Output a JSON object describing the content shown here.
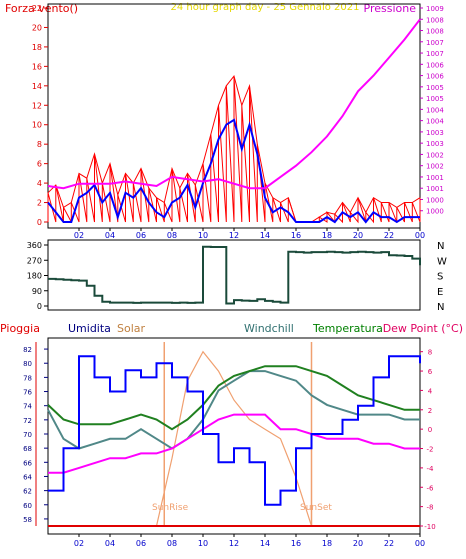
{
  "colors": {
    "frame": "#000000",
    "wind_text": "#e00000",
    "title_text": "#e6d800",
    "pressure_text": "#cc00cc",
    "dir_text": "#000000",
    "rain": "#e00000",
    "humidity": "#000080",
    "solar": "#c08040",
    "windchill": "#307070",
    "temperature": "#008000",
    "dewpoint": "#e00060",
    "wind_gust": "#ff0000",
    "wind_avg": "#0000ff",
    "pressure": "#ff00ff",
    "direction": "#1a4a3a",
    "hum_line": "#0000ff",
    "solar_line": "#f0a070",
    "windchill_line": "#508888",
    "temp_line": "#208020",
    "dew_line": "#ff00ff",
    "grid": "#c8c8c8",
    "tick_axis": "#0000cc"
  },
  "header": {
    "left": "Forza vento()",
    "center": "24 hour graph day - 25 Gennaio 2021",
    "right": "Pressione"
  },
  "legend": {
    "rain": "Pioggia",
    "humidity": "Umidita",
    "solar": "Solar",
    "windchill": "Windchill",
    "temperature": "Temperatura",
    "dewpoint": "Dew Point (°C)"
  },
  "annotations": {
    "sunrise": "SunRise",
    "sunset": "SunSet"
  },
  "direction_axis": [
    "N",
    "W",
    "S",
    "E",
    "N"
  ],
  "chart_data": [
    {
      "type": "line",
      "title": "24 hour graph day - 25 Gennaio 2021",
      "xlabel": "",
      "ylabel": "Forza vento()",
      "y2label": "Pressione",
      "x_ticks": [
        "02",
        "04",
        "06",
        "08",
        "10",
        "12",
        "14",
        "16",
        "18",
        "20",
        "22",
        "00"
      ],
      "ylim": [
        0,
        22
      ],
      "y_ticks": [
        0,
        2,
        4,
        6,
        8,
        10,
        12,
        14,
        16,
        18,
        20,
        22
      ],
      "y2lim": [
        999.5,
        1009
      ],
      "y2_ticks": [
        1000,
        1000.5,
        1001,
        1001.5,
        1002,
        1002.5,
        1003,
        1003.5,
        1004,
        1004.5,
        1005,
        1005.5,
        1006,
        1006.5,
        1007,
        1007.5,
        1008,
        1008.5,
        1009
      ],
      "y2_tick_labels": [
        "1000",
        "1000",
        "1001",
        "1001",
        "1002",
        "1002",
        "1003",
        "1003",
        "1004",
        "1004",
        "1005",
        "1005",
        "1006",
        "1006",
        "1007",
        "1007",
        "1008",
        "1008",
        "1009"
      ],
      "series": [
        {
          "x": [
            0,
            0.5,
            1,
            1.5,
            2,
            2.5,
            3,
            3.5,
            4,
            4.5,
            5,
            5.5,
            6,
            6.5,
            7,
            7.5,
            8,
            8.5,
            9,
            9.5,
            10,
            10.5,
            11,
            11.5,
            12,
            12.5,
            13,
            13.5,
            14,
            14.5,
            15,
            15.5,
            16,
            16.5,
            17,
            17.5,
            18,
            18.5,
            19,
            19.5,
            20,
            20.5,
            21,
            21.5,
            22,
            22.5,
            23,
            23.5,
            24
          ],
          "values": [
            3,
            3.8,
            1.5,
            2,
            5,
            4.5,
            7,
            4,
            6,
            2.8,
            5,
            4,
            5.5,
            3.5,
            2.5,
            2,
            5.5,
            3.5,
            5,
            3.8,
            6,
            9,
            12,
            14,
            15,
            12,
            14,
            8,
            4,
            2.5,
            2,
            2.5,
            0,
            0,
            0,
            0.5,
            1,
            0.8,
            2,
            1,
            2.5,
            1,
            2.5,
            2,
            2,
            1.5,
            2,
            2,
            2.5
          ]
        },
        {
          "x": [
            0,
            0.5,
            1,
            1.5,
            2,
            2.5,
            3,
            3.5,
            4,
            4.5,
            5,
            5.5,
            6,
            6.5,
            7,
            7.5,
            8,
            8.5,
            9,
            9.5,
            10,
            10.5,
            11,
            11.5,
            12,
            12.5,
            13,
            13.5,
            14,
            14.5,
            15,
            15.5,
            16,
            16.5,
            17,
            17.5,
            18,
            18.5,
            19,
            19.5,
            20,
            20.5,
            21,
            21.5,
            22,
            22.5,
            23,
            23.5,
            24
          ],
          "values": [
            2,
            1,
            0,
            0,
            2.5,
            3,
            3.8,
            2,
            3,
            0.5,
            3,
            2.5,
            3.5,
            2,
            1,
            0.5,
            2,
            2.5,
            3.8,
            1.5,
            4,
            6,
            8.5,
            10,
            10.5,
            7.5,
            10,
            7,
            2.5,
            1,
            1.5,
            1,
            0,
            0,
            0,
            0,
            0.5,
            0,
            1,
            0.5,
            1,
            0,
            1,
            0.5,
            0.5,
            0,
            0.5,
            0.5,
            0.5
          ]
        },
        {
          "x": [
            0,
            1,
            2,
            3,
            4,
            5,
            6,
            7,
            8,
            9,
            10,
            11,
            12,
            13,
            14,
            15,
            16,
            17,
            18,
            19,
            20,
            21,
            22,
            23,
            24
          ],
          "values": [
            1001.1,
            1001.0,
            1001.2,
            1001.2,
            1001.2,
            1001.3,
            1001.2,
            1001.1,
            1001.5,
            1001.4,
            1001.3,
            1001.4,
            1001.2,
            1001.0,
            1001.0,
            1001.5,
            1002.0,
            1002.6,
            1003.3,
            1004.2,
            1005.3,
            1006.0,
            1006.8,
            1007.6,
            1008.5
          ]
        }
      ]
    },
    {
      "type": "line",
      "xlabel": "",
      "ylabel": "",
      "ylim": [
        0,
        360
      ],
      "y_ticks": [
        0,
        90,
        180,
        270,
        360
      ],
      "x": [
        0,
        0.5,
        1,
        1.5,
        2,
        2.5,
        3,
        3.5,
        4,
        4.5,
        5,
        5.5,
        6,
        6.5,
        7,
        7.5,
        8,
        8.5,
        9,
        9.5,
        10,
        10.5,
        11,
        11.5,
        12,
        12.5,
        13,
        13.5,
        14,
        14.5,
        15,
        15.5,
        16,
        16.5,
        17,
        17.5,
        18,
        18.5,
        19,
        19.5,
        20,
        20.5,
        21,
        21.5,
        22,
        22.5,
        23,
        23.5,
        24
      ],
      "series": [
        {
          "values": [
            160,
            158,
            155,
            152,
            150,
            120,
            60,
            25,
            20,
            20,
            20,
            18,
            20,
            20,
            20,
            20,
            18,
            20,
            18,
            20,
            350,
            348,
            348,
            15,
            35,
            32,
            30,
            40,
            30,
            25,
            20,
            320,
            318,
            315,
            318,
            318,
            320,
            318,
            315,
            318,
            320,
            318,
            315,
            318,
            300,
            298,
            295,
            280,
            240
          ]
        }
      ]
    },
    {
      "type": "line",
      "xlabel": "",
      "ylabel": "Umidita",
      "y2label": "Dew Point (°C)",
      "x_ticks": [
        "02",
        "04",
        "06",
        "08",
        "10",
        "12",
        "14",
        "16",
        "18",
        "20",
        "22",
        "00"
      ],
      "ylim": [
        57,
        83
      ],
      "y_ticks": [
        58,
        60,
        62,
        64,
        66,
        68,
        70,
        72,
        74,
        76,
        78,
        80,
        82
      ],
      "y2lim": [
        -10,
        9
      ],
      "y2_ticks": [
        -10,
        -8,
        -6,
        -4,
        -2,
        0,
        2,
        4,
        6,
        8
      ],
      "x": [
        0,
        1,
        2,
        3,
        4,
        5,
        6,
        7,
        8,
        9,
        10,
        11,
        12,
        13,
        14,
        15,
        16,
        17,
        18,
        19,
        20,
        21,
        22,
        23,
        24
      ],
      "series": [
        {
          "name": "Umidita",
          "values": [
            62,
            68,
            81,
            78,
            76,
            79,
            78,
            80,
            78,
            76,
            70,
            66,
            68,
            66,
            60,
            62,
            68,
            70,
            70,
            72,
            74,
            78,
            81,
            81,
            80
          ]
        },
        {
          "name": "Temperatura",
          "values": [
            2.5,
            1.0,
            0.5,
            0.5,
            0.5,
            1.0,
            1.5,
            1.0,
            0.0,
            1.0,
            2.5,
            4.5,
            5.5,
            6.0,
            6.5,
            6.5,
            6.5,
            6.0,
            5.5,
            4.5,
            3.5,
            3.0,
            2.5,
            2.0,
            2.0
          ]
        },
        {
          "name": "Windchill",
          "values": [
            2.0,
            -1.0,
            -2.0,
            -1.5,
            -1.0,
            -1.0,
            0.0,
            -1.0,
            -2.0,
            -1.0,
            1.0,
            4.0,
            5.0,
            6.0,
            6.0,
            5.5,
            5.0,
            3.5,
            2.5,
            2.0,
            1.5,
            1.5,
            1.5,
            1.0,
            1.0
          ]
        },
        {
          "name": "Dew Point",
          "values": [
            -4.5,
            -4.5,
            -4.0,
            -3.5,
            -3.0,
            -3.0,
            -2.5,
            -2.5,
            -2.0,
            -1.0,
            0.0,
            1.0,
            1.5,
            1.5,
            1.5,
            0.0,
            0.0,
            -0.5,
            -1.0,
            -1.0,
            -1.0,
            -1.5,
            -1.5,
            -2.0,
            -2.0
          ]
        },
        {
          "name": "Solar",
          "values": [
            -10,
            -10,
            -10,
            -10,
            -10,
            -10,
            -10,
            -10,
            -3,
            5,
            8,
            6,
            3,
            1,
            0,
            -1,
            -5,
            -10,
            -10,
            -10,
            -10,
            -10,
            -10,
            -10,
            -10
          ]
        },
        {
          "name": "Pioggia",
          "values": [
            0,
            0,
            0,
            0,
            0,
            0,
            0,
            0,
            0,
            0,
            0,
            0,
            0,
            0,
            0,
            0,
            0,
            0,
            0,
            0,
            0,
            0,
            0,
            0,
            0
          ]
        }
      ]
    }
  ]
}
